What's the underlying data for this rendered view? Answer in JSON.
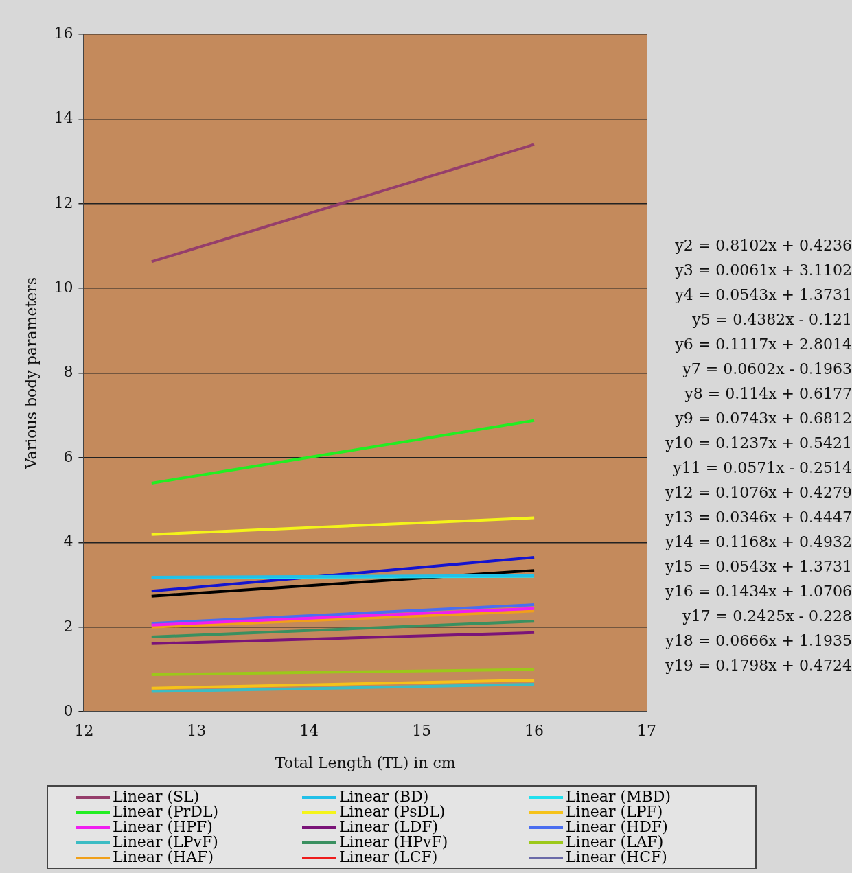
{
  "chart_data": {
    "type": "line",
    "xlabel": "Total Length (TL) in cm",
    "ylabel": "Various body parameters",
    "xlim": [
      12,
      17
    ],
    "xticks": [
      12,
      13,
      14,
      15,
      16,
      17
    ],
    "ylim": [
      0,
      16
    ],
    "yticks": [
      0,
      2,
      4,
      6,
      8,
      10,
      12,
      14,
      16
    ],
    "grid": "y",
    "legend": "bottom",
    "marker": "none",
    "line_style": "solid",
    "x": [
      12.6,
      16
    ],
    "series": [
      {
        "name": "Linear (SL)",
        "color": "#953e6b",
        "values": [
          10.63,
          13.4
        ]
      },
      {
        "name": "Linear (BD)",
        "color": "#22c0e8",
        "values": [
          3.18,
          3.22
        ]
      },
      {
        "name": "Linear (MBD)",
        "color": "#22e0ee",
        "values": [
          3.17,
          3.2
        ]
      },
      {
        "name": "Linear (PrDL)",
        "color": "#22ee22",
        "values": [
          5.4,
          6.88
        ]
      },
      {
        "name": "Linear (PsDL)",
        "color": "#f4f41a",
        "values": [
          4.19,
          4.58
        ]
      },
      {
        "name": "Linear (LPF)",
        "color": "#f5c21a",
        "values": [
          0.56,
          0.75
        ]
      },
      {
        "name": "Linear (HPF)",
        "color": "#f01ef0",
        "values": [
          2.05,
          2.44
        ]
      },
      {
        "name": "Linear (LDF)",
        "color": "#7a1478",
        "values": [
          1.61,
          1.87
        ]
      },
      {
        "name": "Linear (HDF)",
        "color": "#4a6ef0",
        "values": [
          2.09,
          2.53
        ]
      },
      {
        "name": "Linear (LPvF)",
        "color": "#3cbcc4",
        "values": [
          0.48,
          0.65
        ]
      },
      {
        "name": "Linear (HPvF)",
        "color": "#3a9060",
        "values": [
          1.77,
          2.14
        ]
      },
      {
        "name": "Linear (LAF)",
        "color": "#9cc81a",
        "values": [
          0.88,
          1.0
        ]
      },
      {
        "name": "Linear (HAF)",
        "color": "#f0a01a",
        "values": [
          2.0,
          2.38
        ]
      },
      {
        "name": "Linear (LCF)",
        "color": "#ee1c1c",
        "values": [
          null,
          null
        ]
      },
      {
        "name": "Linear (HCF)",
        "color": "#6a6aa8",
        "values": [
          null,
          null
        ]
      },
      {
        "color": "#1414d0",
        "values": [
          2.85,
          3.65
        ]
      },
      {
        "color": "#000000",
        "values": [
          2.73,
          3.34
        ]
      }
    ],
    "annotations": [
      "y2 = 0.8102x + 0.4236",
      "y3 = 0.0061x + 3.1102",
      "y4 = 0.0543x + 1.3731",
      "y5 = 0.4382x - 0.121",
      "y6 = 0.1117x + 2.8014",
      "y7 = 0.0602x - 0.1963",
      "y8 = 0.114x + 0.6177",
      "y9 = 0.0743x + 0.6812",
      "y10 = 0.1237x + 0.5421",
      "y11 = 0.0571x - 0.2514",
      "y12 = 0.1076x + 0.4279",
      "y13 = 0.0346x + 0.4447",
      "y14 = 0.1168x + 0.4932",
      "y15 = 0.0543x + 1.3731",
      "y16 = 0.1434x + 1.0706",
      "y17 = 0.2425x - 0.228",
      "y18 = 0.0666x + 1.1935",
      "y19 = 0.1798x + 0.4724"
    ]
  }
}
